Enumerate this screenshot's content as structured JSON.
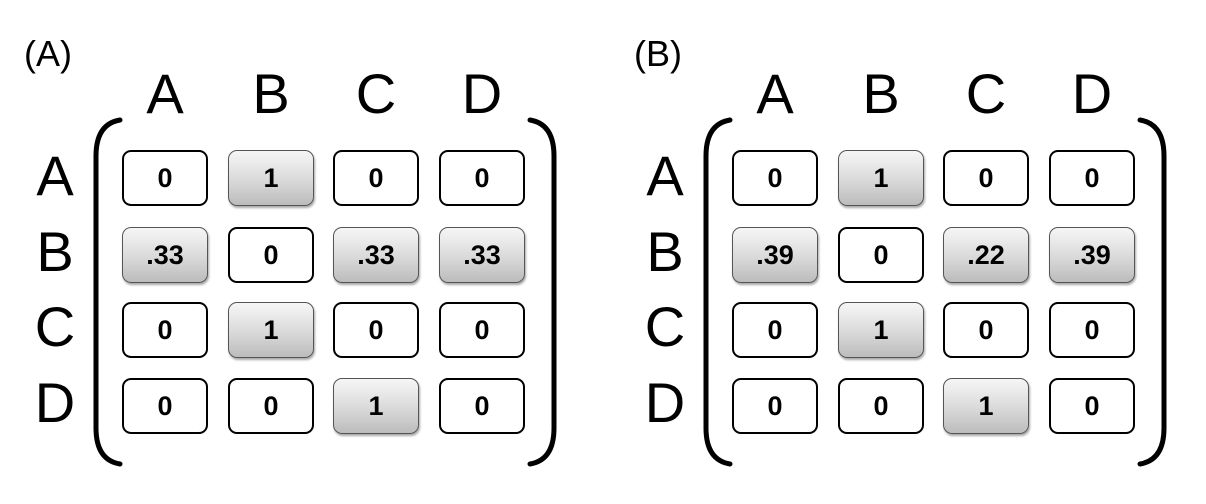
{
  "panels": [
    {
      "label": "(A)",
      "col_headers": [
        "A",
        "B",
        "C",
        "D"
      ],
      "row_headers": [
        "A",
        "B",
        "C",
        "D"
      ],
      "matrix": [
        [
          "0",
          "1",
          "0",
          "0"
        ],
        [
          ".33",
          "0",
          ".33",
          ".33"
        ],
        [
          "0",
          "1",
          "0",
          "0"
        ],
        [
          "0",
          "0",
          "1",
          "0"
        ]
      ],
      "shaded": [
        [
          false,
          true,
          false,
          false
        ],
        [
          true,
          false,
          true,
          true
        ],
        [
          false,
          true,
          false,
          false
        ],
        [
          false,
          false,
          true,
          false
        ]
      ]
    },
    {
      "label": "(B)",
      "col_headers": [
        "A",
        "B",
        "C",
        "D"
      ],
      "row_headers": [
        "A",
        "B",
        "C",
        "D"
      ],
      "matrix": [
        [
          "0",
          "1",
          "0",
          "0"
        ],
        [
          ".39",
          "0",
          ".22",
          ".39"
        ],
        [
          "0",
          "1",
          "0",
          "0"
        ],
        [
          "0",
          "0",
          "1",
          "0"
        ]
      ],
      "shaded": [
        [
          false,
          true,
          false,
          false
        ],
        [
          true,
          false,
          true,
          true
        ],
        [
          false,
          true,
          false,
          false
        ],
        [
          false,
          false,
          true,
          false
        ]
      ]
    }
  ]
}
